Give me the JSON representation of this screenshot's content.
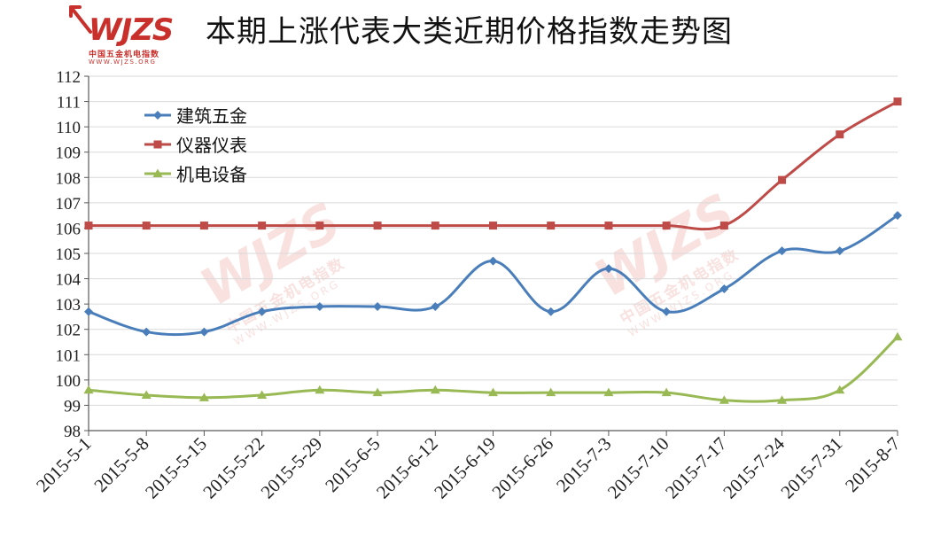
{
  "logo": {
    "mark": "WJZS",
    "cn": "中国五金机电指数",
    "url": "WWW.WJZS.ORG",
    "color": "#c9302c"
  },
  "watermark": {
    "mark": "WJZS",
    "cn": "中国五金机电指数",
    "url": "WWW.WJZS.ORG"
  },
  "chart_data": {
    "type": "line",
    "title": "本期上涨代表大类近期价格指数走势图",
    "xlabel": "",
    "ylabel": "",
    "ylim": [
      98,
      112
    ],
    "yticks": [
      98,
      99,
      100,
      101,
      102,
      103,
      104,
      105,
      106,
      107,
      108,
      109,
      110,
      111,
      112
    ],
    "grid": true,
    "legend_position": "top-left",
    "categories": [
      "2015-5-1",
      "2015-5-8",
      "2015-5-15",
      "2015-5-22",
      "2015-5-29",
      "2015-6-5",
      "2015-6-12",
      "2015-6-19",
      "2015-6-26",
      "2015-7-3",
      "2015-7-10",
      "2015-7-17",
      "2015-7-24",
      "2015-7-31",
      "2015-8-7"
    ],
    "series": [
      {
        "name": "建筑五金",
        "color": "#4a7ebb",
        "marker": "diamond",
        "values": [
          102.7,
          101.9,
          101.9,
          102.7,
          102.9,
          102.9,
          102.9,
          104.7,
          102.7,
          104.4,
          102.7,
          103.6,
          105.1,
          105.1,
          106.5
        ]
      },
      {
        "name": "仪器仪表",
        "color": "#be4b48",
        "marker": "square",
        "values": [
          106.1,
          106.1,
          106.1,
          106.1,
          106.1,
          106.1,
          106.1,
          106.1,
          106.1,
          106.1,
          106.1,
          106.1,
          107.9,
          109.7,
          111.0
        ]
      },
      {
        "name": "机电设备",
        "color": "#98b954",
        "marker": "triangle",
        "values": [
          99.6,
          99.4,
          99.3,
          99.4,
          99.6,
          99.5,
          99.6,
          99.5,
          99.5,
          99.5,
          99.5,
          99.2,
          99.2,
          99.6,
          101.7
        ]
      }
    ]
  }
}
